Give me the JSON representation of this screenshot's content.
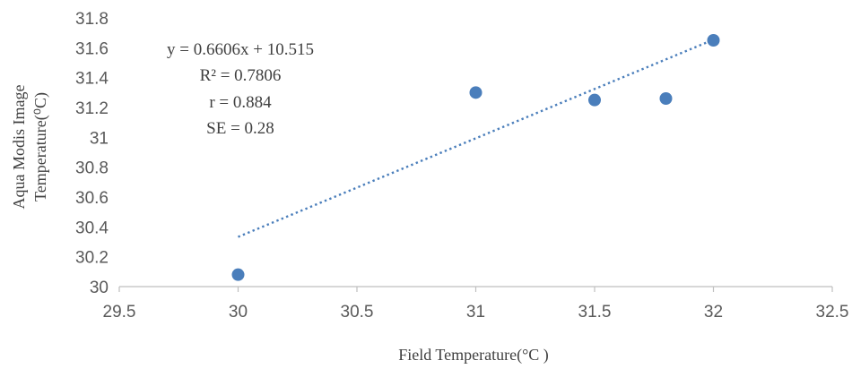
{
  "chart_data": {
    "type": "scatter",
    "title": "",
    "xlabel": "Field Temperature(°C )",
    "ylabel_line1": "Aqua Modis Image",
    "ylabel_line2": "Temperature(⁰C)",
    "xlim": [
      29.5,
      32.5
    ],
    "ylim": [
      30,
      31.8
    ],
    "x_ticks": [
      "29.5",
      "30",
      "30.5",
      "31",
      "31.5",
      "32",
      "32.5"
    ],
    "y_ticks": [
      "30",
      "30.2",
      "30.4",
      "30.6",
      "30.8",
      "31",
      "31.2",
      "31.4",
      "31.6",
      "31.8"
    ],
    "grid": false,
    "legend": "none",
    "series": [
      {
        "x": [
          30,
          31,
          31.5,
          31.8,
          32
        ],
        "y": [
          30.08,
          31.3,
          31.25,
          31.26,
          31.65
        ],
        "color": "#4a7ebb"
      }
    ],
    "trendline": {
      "slope": 0.6606,
      "intercept": 10.515,
      "x_range": [
        30,
        32
      ],
      "style": "dotted",
      "color": "#4a7ebb"
    },
    "annotations": [
      "y = 0.6606x  + 10.515",
      "R² = 0.7806",
      "r = 0.884",
      "SE = 0.28"
    ]
  }
}
